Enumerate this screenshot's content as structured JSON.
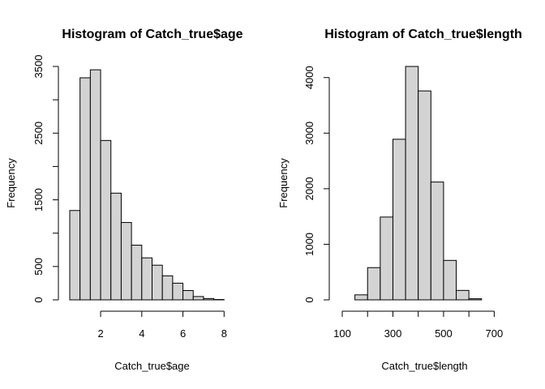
{
  "chart_data": [
    {
      "type": "bar",
      "title": "Histogram of Catch_true$age",
      "xlabel": "Catch_true$age",
      "ylabel": "Frequency",
      "bin_edges": [
        0.5,
        1,
        1.5,
        2,
        2.5,
        3,
        3.5,
        4,
        4.5,
        5,
        5.5,
        6,
        6.5,
        7,
        7.5,
        8
      ],
      "values": [
        1340,
        3330,
        3450,
        2390,
        1600,
        1160,
        820,
        630,
        520,
        360,
        250,
        140,
        50,
        20,
        5
      ],
      "xlim": [
        0.5,
        8.5
      ],
      "ylim": [
        0,
        3500
      ],
      "xticks": [
        2,
        4,
        6,
        8
      ],
      "xtick_labels": [
        "2",
        "4",
        "6",
        "8"
      ],
      "yticks": [
        0,
        500,
        1000,
        1500,
        2000,
        2500,
        3000,
        3500
      ],
      "ytick_labels": [
        "0",
        "500",
        "",
        "1500",
        "",
        "2500",
        "",
        "3500"
      ],
      "grid": false,
      "bar_fill": "#d3d3d3",
      "bar_stroke": "#000000"
    },
    {
      "type": "bar",
      "title": "Histogram of Catch_true$length",
      "xlabel": "Catch_true$length",
      "ylabel": "Frequency",
      "bin_edges": [
        150,
        200,
        250,
        300,
        350,
        400,
        450,
        500,
        550,
        600,
        650
      ],
      "values": [
        90,
        580,
        1490,
        2890,
        4200,
        3760,
        2120,
        710,
        170,
        20
      ],
      "xlim": [
        100,
        750
      ],
      "ylim": [
        0,
        4200
      ],
      "xticks": [
        100,
        200,
        300,
        400,
        500,
        600,
        700
      ],
      "xtick_labels": [
        "100",
        "",
        "300",
        "",
        "500",
        "",
        "700"
      ],
      "yticks": [
        0,
        1000,
        2000,
        3000,
        4000
      ],
      "ytick_labels": [
        "0",
        "1000",
        "2000",
        "3000",
        "4000"
      ],
      "grid": false,
      "bar_fill": "#d3d3d3",
      "bar_stroke": "#000000"
    }
  ]
}
